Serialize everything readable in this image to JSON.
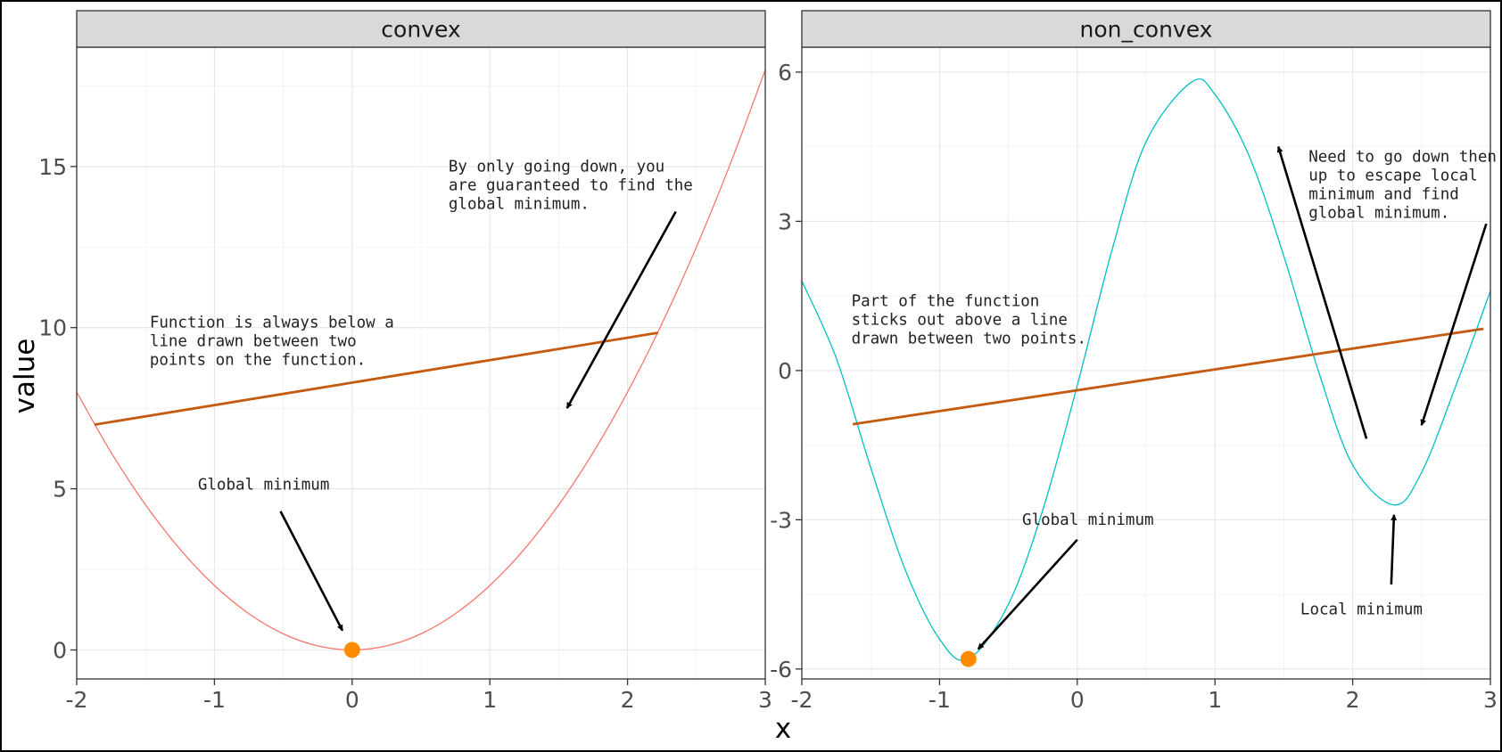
{
  "figure": {
    "xlabel": "x",
    "ylabel": "value"
  },
  "chart_data": [
    {
      "type": "line",
      "facet_label": "convex",
      "x_range": [
        -2.0,
        3.0
      ],
      "y_range": [
        -0.9,
        18.7
      ],
      "x_ticks": [
        -2,
        -1,
        0,
        1,
        2,
        3
      ],
      "x_tick_labels": [
        "-2",
        "-1",
        "0",
        "1",
        "2",
        "3"
      ],
      "y_ticks": [
        0,
        5,
        10,
        15
      ],
      "y_tick_labels": [
        "0",
        "5",
        "10",
        "15"
      ],
      "grid": true,
      "function": "2*x^2",
      "curve_color": "#f8766d",
      "curve": {
        "x": [
          -2.0,
          -1.75,
          -1.5,
          -1.25,
          -1.0,
          -0.75,
          -0.5,
          -0.25,
          0.0,
          0.25,
          0.5,
          0.75,
          1.0,
          1.25,
          1.5,
          1.75,
          2.0,
          2.25,
          2.5,
          2.75,
          3.0
        ],
        "y": [
          8.0,
          6.125,
          4.5,
          3.125,
          2.0,
          1.125,
          0.5,
          0.125,
          0.0,
          0.125,
          0.5,
          1.125,
          2.0,
          3.125,
          4.5,
          6.125,
          8.0,
          10.125,
          12.5,
          15.125,
          18.0
        ]
      },
      "chord": {
        "x": [
          -1.87,
          2.22
        ],
        "y": [
          6.99,
          9.84
        ],
        "color": "#c55a11"
      },
      "point": {
        "x": 0.0,
        "y": 0.0,
        "color": "#ff8c00"
      },
      "annotations": [
        {
          "lines": [
            "Function is always below a",
            "line drawn between two",
            "points on the function."
          ],
          "x": -1.47,
          "y": 10.0
        },
        {
          "lines": [
            "Global minimum"
          ],
          "x": -1.12,
          "y": 4.97
        },
        {
          "lines": [
            "By only going down, you",
            "are guaranteed to find the",
            "global minimum."
          ],
          "x": 0.7,
          "y": 14.85
        }
      ],
      "arrows": [
        {
          "from": [
            -0.52,
            4.3
          ],
          "to": [
            -0.07,
            0.6
          ]
        },
        {
          "from": [
            2.35,
            13.6
          ],
          "to": [
            1.56,
            7.5
          ]
        }
      ]
    },
    {
      "type": "line",
      "facet_label": "non_convex",
      "x_range": [
        -2.0,
        3.0
      ],
      "y_range": [
        -6.2,
        6.5
      ],
      "x_ticks": [
        -2,
        -1,
        0,
        1,
        2,
        3
      ],
      "x_tick_labels": [
        "-2",
        "-1",
        "0",
        "1",
        "2",
        "3"
      ],
      "y_ticks": [
        -6,
        -3,
        0,
        3,
        6
      ],
      "y_tick_labels": [
        "-6",
        "-3",
        "0",
        "3",
        "6"
      ],
      "grid": true,
      "curve_color": "#00bfc4",
      "curve": {
        "x": [
          -2.0,
          -1.75,
          -1.5,
          -1.25,
          -1.0,
          -0.79,
          -0.5,
          -0.25,
          0.0,
          0.25,
          0.5,
          0.83,
          1.0,
          1.25,
          1.5,
          1.75,
          2.0,
          2.3,
          2.5,
          2.75,
          3.0
        ],
        "y": [
          1.8,
          0.25,
          -1.95,
          -4.0,
          -5.4,
          -5.8,
          -4.7,
          -2.8,
          -0.3,
          2.4,
          4.6,
          5.8,
          5.55,
          4.3,
          2.3,
          0.0,
          -1.9,
          -2.7,
          -2.05,
          -0.3,
          1.6
        ]
      },
      "chord": {
        "x": [
          -1.63,
          2.95
        ],
        "y": [
          -1.08,
          0.84
        ],
        "color": "#c55a11"
      },
      "point": {
        "x": -0.79,
        "y": -5.8,
        "color": "#ff8c00"
      },
      "annotations": [
        {
          "lines": [
            "Part of the function",
            "sticks out above a line",
            "drawn between two points."
          ],
          "x": -1.64,
          "y": 1.3
        },
        {
          "lines": [
            "Global minimum"
          ],
          "x": -0.4,
          "y": -3.1
        },
        {
          "lines": [
            "Need to go down then",
            "up to escape local",
            "minimum and find",
            "global minimum."
          ],
          "x": 1.68,
          "y": 4.2
        },
        {
          "lines": [
            "Local minimum"
          ],
          "x": 1.62,
          "y": -4.9
        }
      ],
      "arrows": [
        {
          "from": [
            0.0,
            -3.4
          ],
          "to": [
            -0.72,
            -5.6
          ]
        },
        {
          "from": [
            2.1,
            -1.37
          ],
          "to": [
            1.46,
            4.5
          ]
        },
        {
          "from": [
            2.97,
            2.95
          ],
          "to": [
            2.5,
            -1.1
          ]
        },
        {
          "from": [
            2.28,
            -4.3
          ],
          "to": [
            2.3,
            -2.9
          ]
        }
      ]
    }
  ]
}
